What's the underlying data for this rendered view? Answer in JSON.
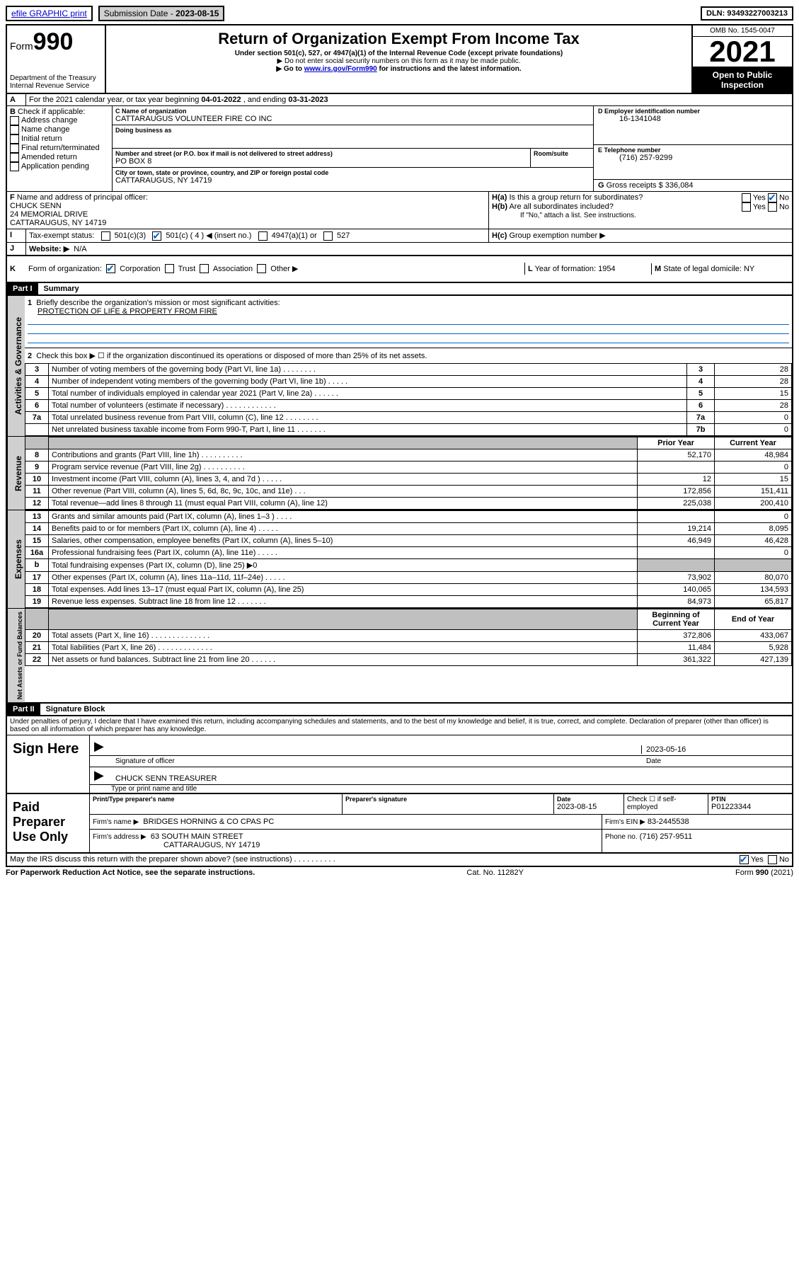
{
  "topbar": {
    "efile": "efile GRAPHIC print",
    "submission_label": "Submission Date -",
    "submission_date": "2023-08-15",
    "dln_label": "DLN:",
    "dln": "93493227003213"
  },
  "header": {
    "form_prefix": "Form",
    "form_number": "990",
    "dept": "Department of the Treasury",
    "irs": "Internal Revenue Service",
    "title": "Return of Organization Exempt From Income Tax",
    "subtitle": "Under section 501(c), 527, or 4947(a)(1) of the Internal Revenue Code (except private foundations)",
    "note1": "▶ Do not enter social security numbers on this form as it may be made public.",
    "note2_a": "▶ Go to ",
    "note2_link": "www.irs.gov/Form990",
    "note2_b": " for instructions and the latest information.",
    "omb": "OMB No. 1545-0047",
    "year": "2021",
    "inspect1": "Open to Public",
    "inspect2": "Inspection"
  },
  "A": {
    "line": "For the 2021 calendar year, or tax year beginning ",
    "begin": "04-01-2022",
    "mid": " , and ending ",
    "end": "03-31-2023"
  },
  "B": {
    "label": "Check if applicable:",
    "opts": [
      "Address change",
      "Name change",
      "Initial return",
      "Final return/terminated",
      "Amended return",
      "Application pending"
    ]
  },
  "C": {
    "name_lbl": "Name of organization",
    "name": "CATTARAUGUS VOLUNTEER FIRE CO INC",
    "dba_lbl": "Doing business as",
    "dba": "",
    "street_lbl": "Number and street (or P.O. box if mail is not delivered to street address)",
    "room_lbl": "Room/suite",
    "street": "PO BOX 8",
    "city_lbl": "City or town, state or province, country, and ZIP or foreign postal code",
    "city": "CATTARAUGUS, NY  14719"
  },
  "D": {
    "lbl": "Employer identification number",
    "val": "16-1341048"
  },
  "E": {
    "lbl": "Telephone number",
    "val": "(716) 257-9299"
  },
  "G": {
    "lbl": "Gross receipts $",
    "val": "336,084"
  },
  "F": {
    "lbl": "Name and address of principal officer:",
    "name": "CHUCK SENN",
    "addr1": "24 MEMORIAL DRIVE",
    "addr2": "CATTARAUGUS, NY  14719"
  },
  "H": {
    "a": "Is this a group return for subordinates?",
    "b": "Are all subordinates included?",
    "b_note": "If \"No,\" attach a list. See instructions.",
    "c": "Group exemption number ▶",
    "yes": "Yes",
    "no": "No"
  },
  "I": {
    "lbl": "Tax-exempt status:",
    "c3": "501(c)(3)",
    "c4": "501(c) ( 4 ) ◀ (insert no.)",
    "a1": "4947(a)(1) or",
    "five27": "527"
  },
  "J": {
    "lbl": "Website: ▶",
    "val": "N/A"
  },
  "K": {
    "lbl": "Form of organization:",
    "corp": "Corporation",
    "trust": "Trust",
    "assoc": "Association",
    "other": "Other ▶"
  },
  "L": {
    "lbl": "Year of formation:",
    "val": "1954"
  },
  "M": {
    "lbl": "State of legal domicile:",
    "val": "NY"
  },
  "partI": {
    "hdr": "Part I",
    "title": "Summary",
    "line1_lbl": "Briefly describe the organization's mission or most significant activities:",
    "line1_val": "PROTECTION OF LIFE & PROPERTY FROM FIRE",
    "line2": "Check this box ▶ ☐  if the organization discontinued its operations or disposed of more than 25% of its net assets.",
    "prior_hdr": "Prior Year",
    "current_hdr": "Current Year",
    "beg_hdr": "Beginning of Current Year",
    "end_hdr": "End of Year",
    "side_gov": "Activities & Governance",
    "side_rev": "Revenue",
    "side_exp": "Expenses",
    "side_net": "Net Assets or Fund Balances",
    "rows_gov": [
      {
        "n": "3",
        "d": "Number of voting members of the governing body (Part VI, line 1a)  .    .    .    .    .    .    .    .",
        "box": "3",
        "v": "28"
      },
      {
        "n": "4",
        "d": "Number of independent voting members of the governing body (Part VI, line 1b)  .    .    .    .    .",
        "box": "4",
        "v": "28"
      },
      {
        "n": "5",
        "d": "Total number of individuals employed in calendar year 2021 (Part V, line 2a)  .    .    .    .    .    .",
        "box": "5",
        "v": "15"
      },
      {
        "n": "6",
        "d": "Total number of volunteers (estimate if necessary)  .    .    .    .    .    .    .    .    .    .    .    .",
        "box": "6",
        "v": "28"
      },
      {
        "n": "7a",
        "d": "Total unrelated business revenue from Part VIII, column (C), line 12  .    .    .    .    .    .    .    .",
        "box": "7a",
        "v": "0"
      },
      {
        "n": "",
        "d": "Net unrelated business taxable income from Form 990-T, Part I, line 11  .    .    .    .    .    .    .",
        "box": "7b",
        "v": "0"
      }
    ],
    "rows_rev": [
      {
        "n": "8",
        "d": "Contributions and grants (Part VIII, line 1h)  .    .    .    .    .    .    .    .    .    .",
        "p": "52,170",
        "c": "48,984"
      },
      {
        "n": "9",
        "d": "Program service revenue (Part VIII, line 2g)  .    .    .    .    .    .    .    .    .    .",
        "p": "",
        "c": "0"
      },
      {
        "n": "10",
        "d": "Investment income (Part VIII, column (A), lines 3, 4, and 7d )  .    .    .    .    .",
        "p": "12",
        "c": "15"
      },
      {
        "n": "11",
        "d": "Other revenue (Part VIII, column (A), lines 5, 6d, 8c, 9c, 10c, and 11e)  .    .    .",
        "p": "172,856",
        "c": "151,411"
      },
      {
        "n": "12",
        "d": "Total revenue—add lines 8 through 11 (must equal Part VIII, column (A), line 12)",
        "p": "225,038",
        "c": "200,410"
      }
    ],
    "rows_exp": [
      {
        "n": "13",
        "d": "Grants and similar amounts paid (Part IX, column (A), lines 1–3 )  .    .    .    .",
        "p": "",
        "c": "0"
      },
      {
        "n": "14",
        "d": "Benefits paid to or for members (Part IX, column (A), line 4)  .    .    .    .    .",
        "p": "19,214",
        "c": "8,095"
      },
      {
        "n": "15",
        "d": "Salaries, other compensation, employee benefits (Part IX, column (A), lines 5–10)",
        "p": "46,949",
        "c": "46,428"
      },
      {
        "n": "16a",
        "d": "Professional fundraising fees (Part IX, column (A), line 11e)  .    .    .    .    .",
        "p": "",
        "c": "0"
      },
      {
        "n": "b",
        "d": "Total fundraising expenses (Part IX, column (D), line 25) ▶0",
        "p": "grey",
        "c": "grey"
      },
      {
        "n": "17",
        "d": "Other expenses (Part IX, column (A), lines 11a–11d, 11f–24e)  .    .    .    .    .",
        "p": "73,902",
        "c": "80,070"
      },
      {
        "n": "18",
        "d": "Total expenses. Add lines 13–17 (must equal Part IX, column (A), line 25)",
        "p": "140,065",
        "c": "134,593"
      },
      {
        "n": "19",
        "d": "Revenue less expenses. Subtract line 18 from line 12  .    .    .    .    .    .    .",
        "p": "84,973",
        "c": "65,817"
      }
    ],
    "rows_net": [
      {
        "n": "20",
        "d": "Total assets (Part X, line 16)  .    .    .    .    .    .    .    .    .    .    .    .    .    .",
        "p": "372,806",
        "c": "433,067"
      },
      {
        "n": "21",
        "d": "Total liabilities (Part X, line 26)  .    .    .    .    .    .    .    .    .    .    .    .    .",
        "p": "11,484",
        "c": "5,928"
      },
      {
        "n": "22",
        "d": "Net assets or fund balances. Subtract line 21 from line 20  .    .    .    .    .    .",
        "p": "361,322",
        "c": "427,139"
      }
    ]
  },
  "partII": {
    "hdr": "Part II",
    "title": "Signature Block",
    "decl": "Under penalties of perjury, I declare that I have examined this return, including accompanying schedules and statements, and to the best of my knowledge and belief, it is true, correct, and complete. Declaration of preparer (other than officer) is based on all information of which preparer has any knowledge."
  },
  "sign": {
    "here": "Sign Here",
    "sig_lbl": "Signature of officer",
    "date_lbl": "Date",
    "date_val": "2023-05-16",
    "name": "CHUCK SENN TREASURER",
    "name_lbl": "Type or print name and title"
  },
  "paid": {
    "hdr": "Paid Preparer Use Only",
    "pt_lbl": "Print/Type preparer's name",
    "sig_lbl": "Preparer's signature",
    "date_lbl": "Date",
    "date_val": "2023-08-15",
    "check_lbl": "Check ☐ if self-employed",
    "ptin_lbl": "PTIN",
    "ptin_val": "P01223344",
    "firm_name_lbl": "Firm's name    ▶",
    "firm_name": "BRIDGES HORNING & CO CPAS PC",
    "firm_ein_lbl": "Firm's EIN ▶",
    "firm_ein": "83-2445538",
    "firm_addr_lbl": "Firm's address ▶",
    "firm_addr1": "63 SOUTH MAIN STREET",
    "firm_addr2": "CATTARAUGUS, NY  14719",
    "phone_lbl": "Phone no.",
    "phone": "(716) 257-9511"
  },
  "footer": {
    "discuss": "May the IRS discuss this return with the preparer shown above? (see instructions)  .    .    .    .    .    .    .    .    .    .",
    "yes": "Yes",
    "no": "No",
    "paperwork": "For Paperwork Reduction Act Notice, see the separate instructions.",
    "cat": "Cat. No. 11282Y",
    "formno": "Form 990 (2021)"
  },
  "letters": {
    "A": "A",
    "B": "B",
    "C": "C",
    "D": "D",
    "E": "E",
    "F": "F",
    "G": "G",
    "Ha": "H(a)",
    "Hb": "H(b)",
    "Hc": "H(c)",
    "I": "I",
    "J": "J",
    "K": "K",
    "L": "L",
    "M": "M",
    "one": "1",
    "two": "2",
    "b": "b"
  }
}
